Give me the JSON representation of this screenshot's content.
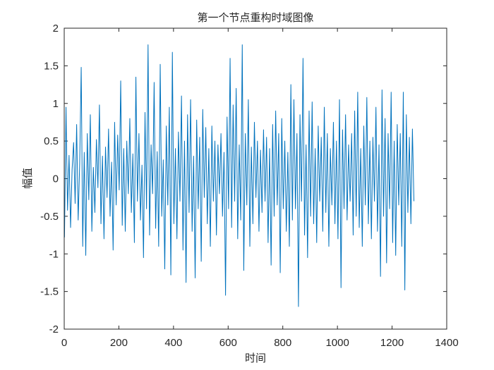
{
  "chart_data": {
    "type": "line",
    "title": "第一个节点重构时域图像",
    "xlabel": "时间",
    "ylabel": "幅值",
    "xlim": [
      0,
      1400
    ],
    "ylim": [
      -2,
      2
    ],
    "x_ticks": [
      "0",
      "200",
      "400",
      "600",
      "800",
      "1000",
      "1200",
      "1400"
    ],
    "y_ticks": [
      "2",
      "1.5",
      "1",
      "0.5",
      "0",
      "-0.5",
      "-1",
      "-1.5",
      "-2"
    ],
    "grid": false,
    "line_color": "#0072BD",
    "series": [
      {
        "x_start": 1,
        "x_end": 1280,
        "values": [
          -0.78,
          0.95,
          -0.42,
          0.31,
          -0.65,
          0.12,
          0.48,
          -0.33,
          0.72,
          -0.55,
          0.2,
          1.48,
          -0.9,
          0.35,
          -1.02,
          0.6,
          -0.28,
          0.85,
          -0.7,
          0.15,
          -0.45,
          0.52,
          -0.12,
          0.98,
          -0.6,
          0.3,
          -0.8,
          0.42,
          -0.25,
          0.66,
          -0.5,
          0.22,
          -0.95,
          0.75,
          -0.35,
          0.58,
          -0.15,
          1.3,
          -0.62,
          0.4,
          -0.7,
          0.5,
          -0.2,
          0.8,
          -0.45,
          0.33,
          -0.85,
          1.35,
          -0.3,
          0.6,
          -0.55,
          0.18,
          -1.05,
          0.88,
          -0.4,
          1.78,
          -0.75,
          0.45,
          -0.2,
          1.28,
          -0.66,
          0.36,
          -0.9,
          1.52,
          -0.5,
          0.25,
          -1.2,
          0.7,
          -0.35,
          0.95,
          -1.28,
          1.68,
          -0.6,
          0.4,
          -0.8,
          0.62,
          -0.3,
          1.1,
          -0.95,
          0.5,
          -1.38,
          0.85,
          -0.45,
          1.05,
          -0.7,
          0.3,
          -1.32,
          0.78,
          -0.4,
          0.55,
          -1.1,
          0.92,
          -0.25,
          0.68,
          -0.6,
          0.4,
          -0.9,
          0.7,
          -0.3,
          0.5,
          -0.75,
          0.45,
          -0.2,
          0.6,
          -0.5,
          0.35,
          -1.55,
          0.82,
          -0.4,
          1.6,
          -0.65,
          0.98,
          -0.3,
          1.2,
          -0.8,
          0.45,
          -0.55,
          1.78,
          -1.22,
          0.6,
          -0.35,
          1.05,
          -0.9,
          0.42,
          -0.6,
          0.75,
          -0.25,
          0.5,
          -0.7,
          0.38,
          -0.45,
          0.65,
          -0.3,
          0.55,
          -0.85,
          0.4,
          -1.15,
          0.72,
          -0.5,
          0.9,
          -0.35,
          0.6,
          -1.25,
          0.8,
          -0.4,
          0.5,
          -0.7,
          0.35,
          -0.9,
          1.25,
          -0.55,
          1.05,
          -0.4,
          0.6,
          -1.7,
          0.85,
          -0.3,
          1.6,
          -0.75,
          0.45,
          -1.05,
          0.9,
          -0.5,
          1.02,
          -0.6,
          0.4,
          -0.85,
          0.7,
          -0.3,
          0.55,
          -0.7,
          0.95,
          -0.45,
          0.6,
          -0.9,
          0.4,
          -0.35,
          0.75,
          -0.6,
          0.5,
          -0.8,
          1.05,
          -1.45,
          0.65,
          -0.4,
          0.85,
          -0.55,
          0.45,
          -0.3,
          0.6,
          -0.75,
          0.9,
          -0.5,
          1.15,
          -0.65,
          0.4,
          -0.9,
          0.7,
          -0.35,
          1.08,
          -0.6,
          0.5,
          -0.8,
          0.55,
          -0.3,
          0.95,
          -0.7,
          0.45,
          -1.3,
          1.18,
          -0.5,
          0.8,
          -1.12,
          0.6,
          -0.4,
          1.15,
          -0.85,
          0.5,
          -1.02,
          0.72,
          -0.35,
          0.6,
          -0.9,
          1.15,
          -1.48,
          0.85,
          -0.45,
          0.55,
          -0.6,
          0.66,
          -0.3
        ],
        "note_values": "sampled approximation of the printed noisy signal"
      }
    ]
  }
}
